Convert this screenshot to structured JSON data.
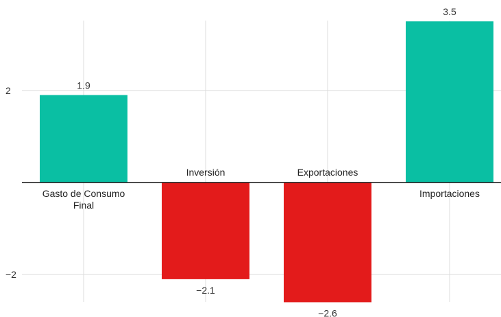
{
  "chart_data": {
    "type": "bar",
    "categories": [
      [
        "Gasto de Consumo",
        "Final"
      ],
      [
        "Inversión"
      ],
      [
        "Exportaciones"
      ],
      [
        "Importaciones"
      ]
    ],
    "values": [
      1.9,
      -2.1,
      -2.6,
      3.5
    ],
    "value_labels": [
      "1.9",
      "−2.1",
      "−2.6",
      "3.5"
    ],
    "y_ticks": [
      2,
      -2
    ],
    "y_tick_labels": [
      "2",
      "−2"
    ],
    "ylim": [
      -2.6,
      3.5
    ],
    "grid": true,
    "colors": {
      "positive": "#0abfa3",
      "negative": "#e31b1b",
      "grid": "#dddddd",
      "baseline": "#111111"
    }
  }
}
